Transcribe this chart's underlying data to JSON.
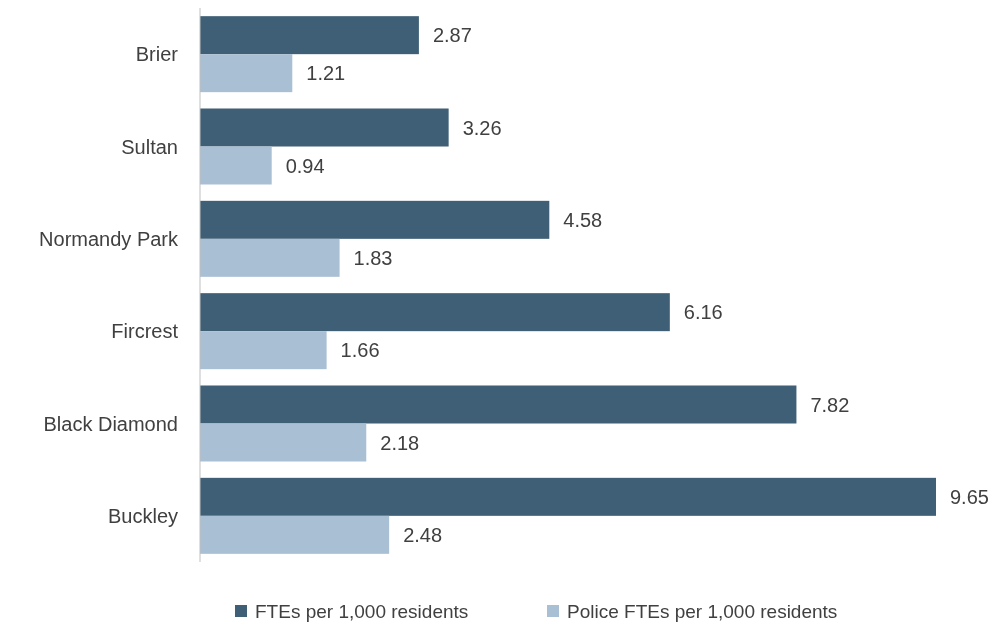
{
  "chart_data": {
    "type": "bar",
    "orientation": "horizontal",
    "categories": [
      "Brier",
      "Sultan",
      "Normandy Park",
      "Fircrest",
      "Black Diamond",
      "Buckley"
    ],
    "series": [
      {
        "name": "FTEs per 1,000 residents",
        "color": "#3e5f75",
        "values": [
          2.87,
          3.26,
          4.58,
          6.16,
          7.82,
          9.65
        ]
      },
      {
        "name": "Police FTEs per 1,000 residents",
        "color": "#a9bfd3",
        "values": [
          1.21,
          0.94,
          1.83,
          1.66,
          2.18,
          2.48
        ]
      }
    ],
    "data_labels": true,
    "legend": "bottom",
    "grid": false
  }
}
